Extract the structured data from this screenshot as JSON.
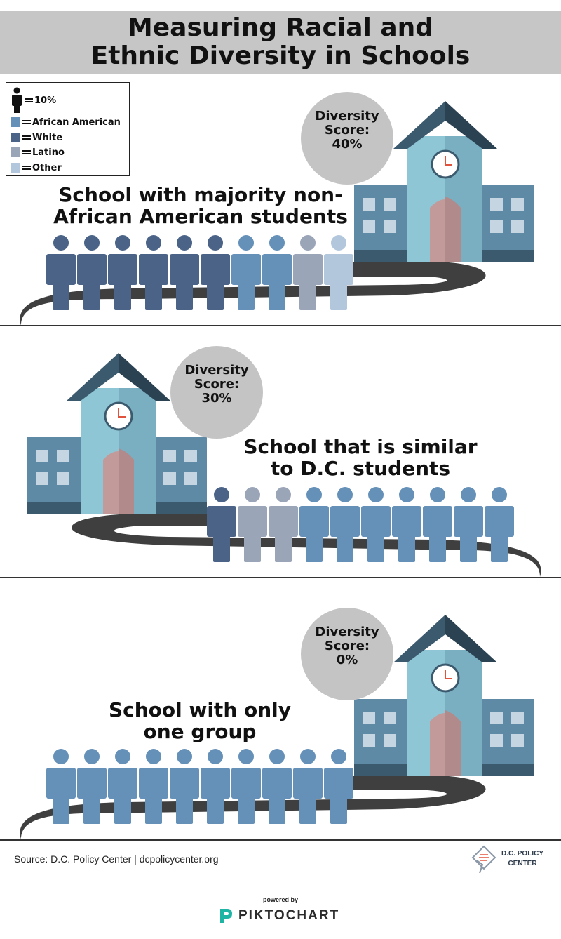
{
  "title": {
    "line1": "Measuring Racial and",
    "line2": "Ethnic Diversity in Schools"
  },
  "legend": {
    "items": [
      {
        "label": "10%",
        "icon": "person-icon",
        "color": "#111111"
      },
      {
        "label": "African American",
        "icon": "swatch",
        "color": "#6590b8"
      },
      {
        "label": "White",
        "icon": "swatch",
        "color": "#4a6387"
      },
      {
        "label": "Latino",
        "icon": "swatch",
        "color": "#9aa5b8"
      },
      {
        "label": "Other",
        "icon": "swatch",
        "color": "#b3c7dc"
      }
    ]
  },
  "colors": {
    "african_american": "#6590b8",
    "white": "#4a6387",
    "latino": "#9aa5b8",
    "other": "#b3c7dc",
    "road": "#3f3f3f",
    "bubble": "#c4c4c4",
    "building_wing": "#5f8aa6",
    "building_center": "#8fc6d6",
    "roof": "#3c5a6e",
    "door": "#c29a9a"
  },
  "sections": [
    {
      "label_line1": "School with majority non-",
      "label_line2": "African American students",
      "score_line1": "Diversity",
      "score_line2": "Score:",
      "score_value": "40%",
      "composition": [
        "white",
        "white",
        "white",
        "white",
        "white",
        "white",
        "african_american",
        "african_american",
        "latino",
        "other"
      ]
    },
    {
      "label_line1": "School that is similar",
      "label_line2": "to D.C. students",
      "score_line1": "Diversity",
      "score_line2": "Score:",
      "score_value": "30%",
      "composition": [
        "white",
        "latino",
        "latino",
        "african_american",
        "african_american",
        "african_american",
        "african_american",
        "african_american",
        "african_american",
        "african_american"
      ]
    },
    {
      "label_line1": "School with only",
      "label_line2": "one group",
      "score_line1": "Diversity",
      "score_line2": "Score:",
      "score_value": "0%",
      "composition": [
        "african_american",
        "african_american",
        "african_american",
        "african_american",
        "african_american",
        "african_american",
        "african_american",
        "african_american",
        "african_american",
        "african_american"
      ]
    }
  ],
  "footer": {
    "source": "Source: D.C. Policy Center | dcpolicycenter.org",
    "logo_line1": "D.C. POLICY",
    "logo_line2": "CENTER",
    "powered_by": "powered by",
    "piktochart": "PIKTOCHART"
  }
}
